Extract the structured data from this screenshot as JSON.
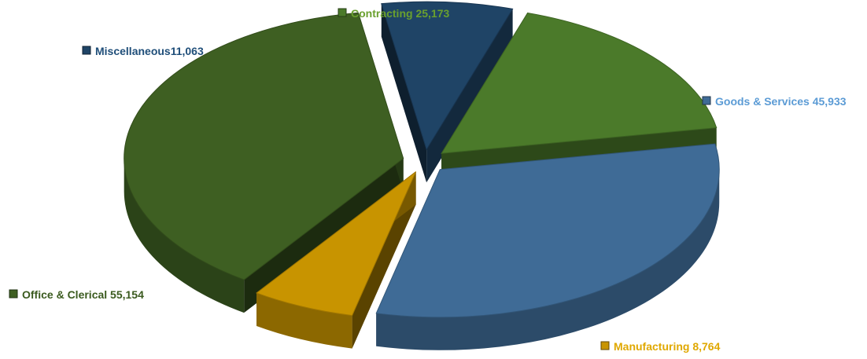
{
  "chart_data": {
    "type": "pie",
    "title": "",
    "legend": "inline-labels",
    "slices": [
      {
        "label": "Goods & Services",
        "value": 45933,
        "value_text": "45,933",
        "color": "#3f6b96",
        "label_color": "#5b9bd5"
      },
      {
        "label": "Manufacturing",
        "value": 8764,
        "value_text": "8,764",
        "color": "#c89400",
        "label_color": "#e0a800"
      },
      {
        "label": "Office & Clerical",
        "value": 55154,
        "value_text": "55,154",
        "color": "#3e5f22",
        "label_color": "#3a5a1e"
      },
      {
        "label": "Miscellaneous",
        "value": 11063,
        "value_text": "11,063",
        "color": "#1f4466",
        "label_color": "#1f4e79"
      },
      {
        "label": "Contracting",
        "value": 25173,
        "value_text": "25,173",
        "color": "#4b7a2a",
        "label_color": "#6aa02e"
      }
    ]
  }
}
